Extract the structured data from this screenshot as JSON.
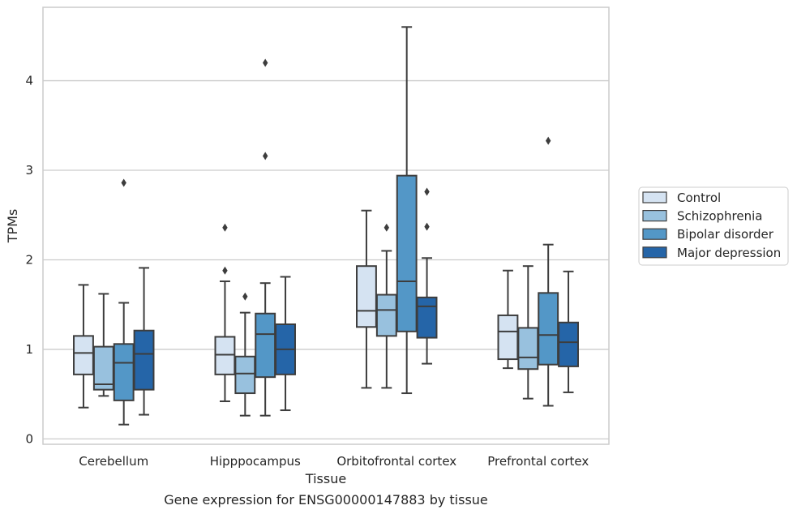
{
  "chart_data": {
    "type": "box",
    "title": "",
    "caption": "Gene expression for ENSG00000147883 by tissue",
    "xlabel": "Tissue",
    "ylabel": "TPMs",
    "ylim": [
      -0.06,
      4.82
    ],
    "yticks": [
      0,
      1,
      2,
      3,
      4
    ],
    "grid": "horizontal",
    "legend_position": "right",
    "categories": [
      "Cerebellum",
      "Hipppocampus",
      "Orbitofrontal cortex",
      "Prefrontal cortex"
    ],
    "series": [
      {
        "name": "Control",
        "color": "#d5e3f2",
        "boxes": [
          {
            "whislo": 0.35,
            "q1": 0.72,
            "med": 0.96,
            "q3": 1.15,
            "whishi": 1.72,
            "fliers": []
          },
          {
            "whislo": 0.42,
            "q1": 0.72,
            "med": 0.94,
            "q3": 1.14,
            "whishi": 1.76,
            "fliers": [
              1.88,
              2.36
            ]
          },
          {
            "whislo": 0.57,
            "q1": 1.25,
            "med": 1.43,
            "q3": 1.93,
            "whishi": 2.55,
            "fliers": []
          },
          {
            "whislo": 0.79,
            "q1": 0.89,
            "med": 1.2,
            "q3": 1.38,
            "whishi": 1.88,
            "fliers": []
          }
        ]
      },
      {
        "name": "Schizophrenia",
        "color": "#98c1de",
        "boxes": [
          {
            "whislo": 0.48,
            "q1": 0.55,
            "med": 0.61,
            "q3": 1.03,
            "whishi": 1.62,
            "fliers": []
          },
          {
            "whislo": 0.26,
            "q1": 0.51,
            "med": 0.73,
            "q3": 0.92,
            "whishi": 1.41,
            "fliers": [
              1.59
            ]
          },
          {
            "whislo": 0.57,
            "q1": 1.15,
            "med": 1.44,
            "q3": 1.61,
            "whishi": 2.1,
            "fliers": [
              2.36
            ]
          },
          {
            "whislo": 0.45,
            "q1": 0.78,
            "med": 0.91,
            "q3": 1.24,
            "whishi": 1.93,
            "fliers": []
          }
        ]
      },
      {
        "name": "Bipolar disorder",
        "color": "#5397c7",
        "boxes": [
          {
            "whislo": 0.16,
            "q1": 0.43,
            "med": 0.85,
            "q3": 1.06,
            "whishi": 1.52,
            "fliers": [
              2.86
            ]
          },
          {
            "whislo": 0.26,
            "q1": 0.69,
            "med": 1.17,
            "q3": 1.4,
            "whishi": 1.74,
            "fliers": [
              3.16,
              4.2
            ]
          },
          {
            "whislo": 0.51,
            "q1": 1.2,
            "med": 1.76,
            "q3": 2.94,
            "whishi": 4.6,
            "fliers": []
          },
          {
            "whislo": 0.37,
            "q1": 0.83,
            "med": 1.16,
            "q3": 1.63,
            "whishi": 2.17,
            "fliers": [
              3.33
            ]
          }
        ]
      },
      {
        "name": "Major depression",
        "color": "#2565a8",
        "boxes": [
          {
            "whislo": 0.27,
            "q1": 0.55,
            "med": 0.95,
            "q3": 1.21,
            "whishi": 1.91,
            "fliers": []
          },
          {
            "whislo": 0.32,
            "q1": 0.72,
            "med": 1.0,
            "q3": 1.28,
            "whishi": 1.81,
            "fliers": []
          },
          {
            "whislo": 0.84,
            "q1": 1.13,
            "med": 1.48,
            "q3": 1.58,
            "whishi": 2.02,
            "fliers": [
              2.37,
              2.76
            ]
          },
          {
            "whislo": 0.52,
            "q1": 0.81,
            "med": 1.08,
            "q3": 1.3,
            "whishi": 1.87,
            "fliers": []
          }
        ]
      }
    ]
  }
}
